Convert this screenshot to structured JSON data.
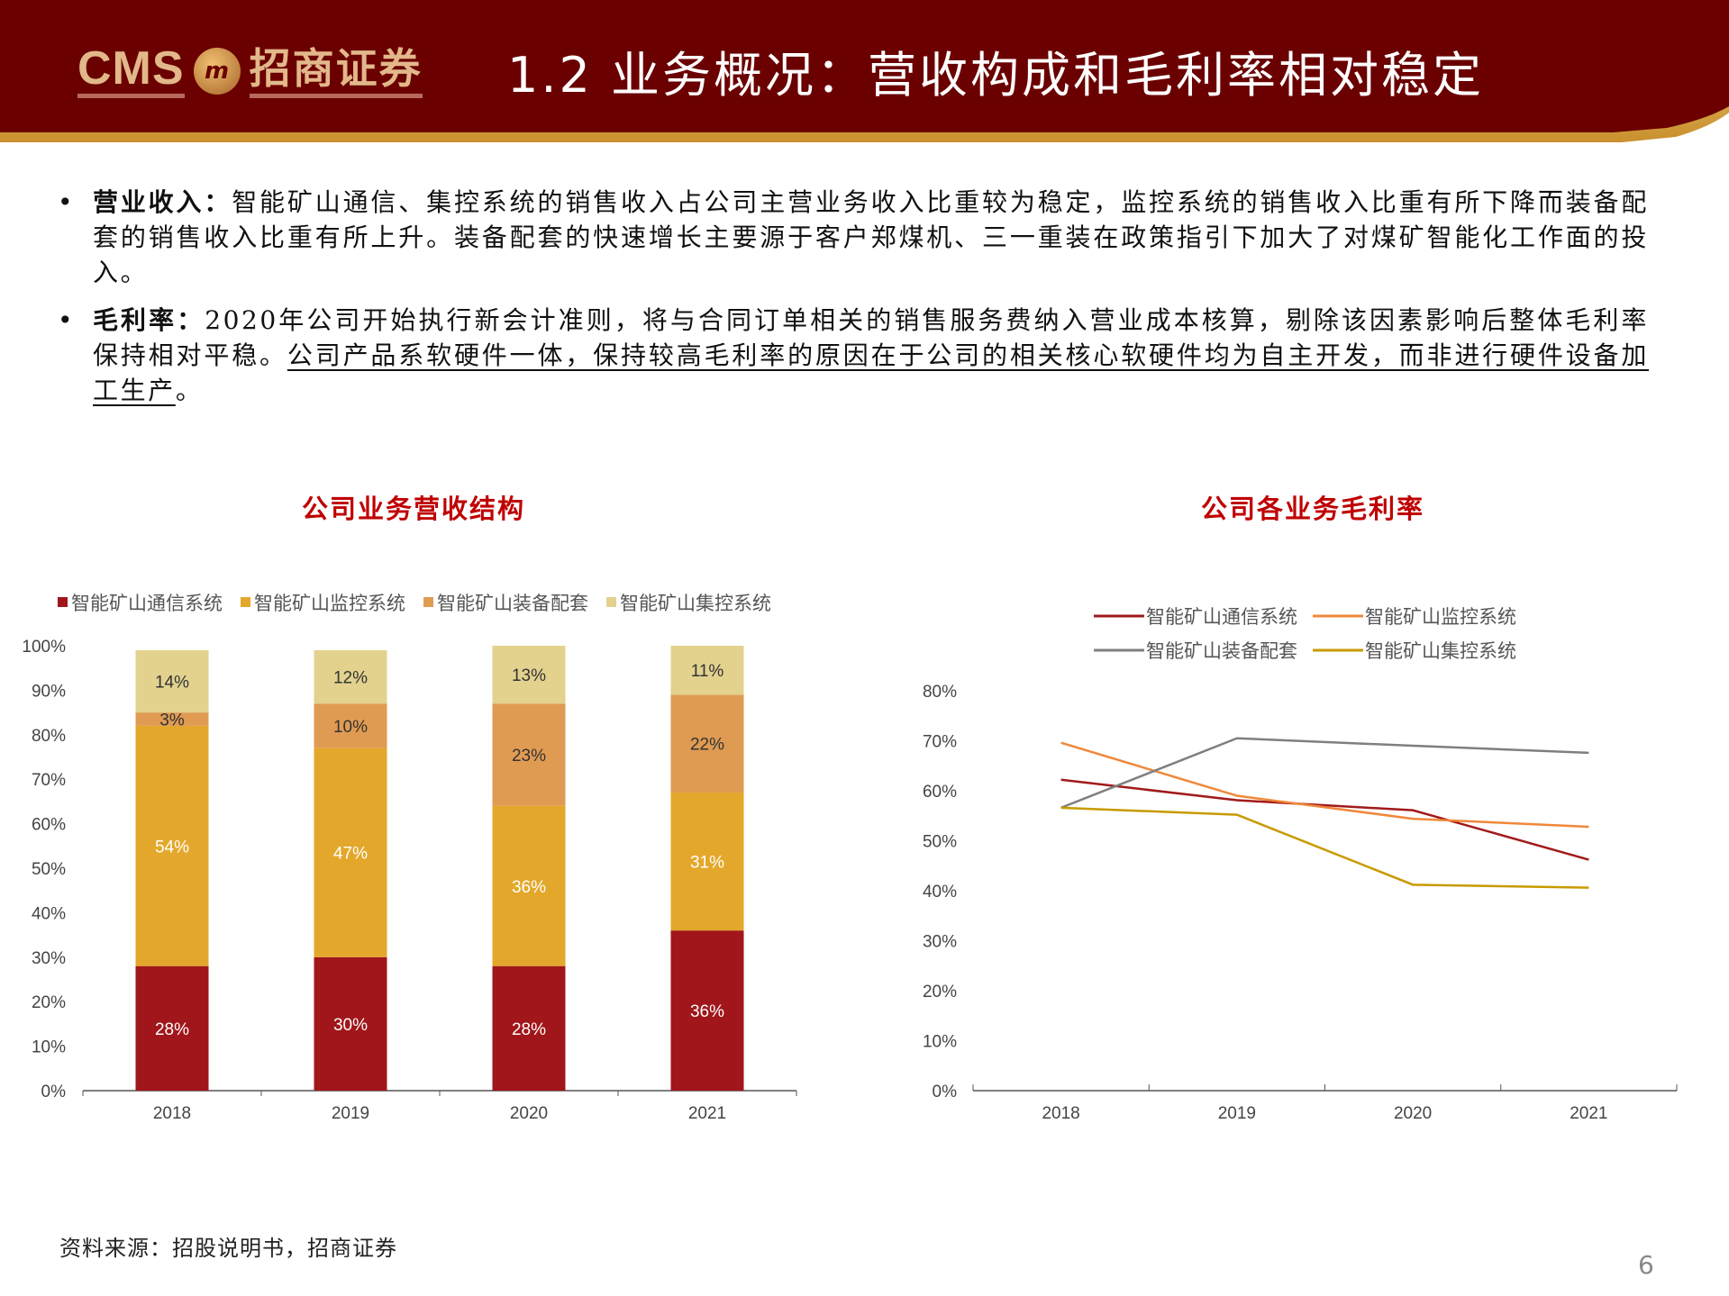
{
  "header": {
    "logo_text": "CMS 招商证券",
    "logo_cms": "CMS",
    "logo_cn": "招商证券",
    "title": "1.2 业务概况：营收构成和毛利率相对稳定"
  },
  "bullets": [
    {
      "label": "营业收入：",
      "text": "智能矿山通信、集控系统的销售收入占公司主营业务收入比重较为稳定，监控系统的销售收入比重有所下降而装备配套的销售收入比重有所上升。装备配套的快速增长主要源于客户郑煤机、三一重装在政策指引下加大了对煤矿智能化工作面的投入。",
      "underlined": "",
      "tail": ""
    },
    {
      "label": "毛利率：",
      "text": "2020年公司开始执行新会计准则，将与合同订单相关的销售服务费纳入营业成本核算，剔除该因素影响后整体毛利率保持相对平稳。",
      "underlined": "公司产品系软硬件一体，保持较高毛利率的原因在于公司的相关核心软硬件均为自主开发，而非进行硬件设备加工生产",
      "tail": "。"
    }
  ],
  "chart_data": [
    {
      "type": "bar",
      "stacked": true,
      "title": "公司业务营收结构",
      "categories": [
        "2018",
        "2019",
        "2020",
        "2021"
      ],
      "series": [
        {
          "name": "智能矿山通信系统",
          "values": [
            28,
            30,
            28,
            36
          ],
          "color": "#a0161a",
          "label_color": "#ffffff"
        },
        {
          "name": "智能矿山监控系统",
          "values": [
            54,
            47,
            36,
            31
          ],
          "color": "#e3a82b",
          "label_color": "#ffffff"
        },
        {
          "name": "智能矿山装备配套",
          "values": [
            3,
            10,
            23,
            22
          ],
          "color": "#e09b52",
          "label_color": "#333333"
        },
        {
          "name": "智能矿山集控系统",
          "values": [
            14,
            12,
            13,
            11
          ],
          "color": "#e2d28e",
          "label_color": "#333333"
        }
      ],
      "data_labels": [
        [
          "28%",
          "30%",
          "28%",
          "36%"
        ],
        [
          "54%",
          "47%",
          "36%",
          "31%"
        ],
        [
          "3%",
          "10%",
          "23%",
          "22%"
        ],
        [
          "14%",
          "12%",
          "13%",
          "11%"
        ]
      ],
      "yticks": [
        "0%",
        "10%",
        "20%",
        "30%",
        "40%",
        "50%",
        "60%",
        "70%",
        "80%",
        "90%",
        "100%"
      ],
      "ylim": [
        0,
        100
      ],
      "legend_position": "top-left",
      "grid": false
    },
    {
      "type": "line",
      "title": "公司各业务毛利率",
      "categories": [
        "2018",
        "2019",
        "2020",
        "2021"
      ],
      "series": [
        {
          "name": "智能矿山通信系统",
          "values": [
            62.2,
            58.1,
            56.1,
            46.2
          ],
          "color": "#a11a1a"
        },
        {
          "name": "智能矿山监控系统",
          "values": [
            69.6,
            59.0,
            54.4,
            52.8
          ],
          "color": "#f0883a"
        },
        {
          "name": "智能矿山装备配套",
          "values": [
            56.6,
            70.5,
            69.0,
            67.6
          ],
          "color": "#7f7f7f"
        },
        {
          "name": "智能矿山集控系统",
          "values": [
            56.6,
            55.2,
            41.2,
            40.6
          ],
          "color": "#c89a00"
        }
      ],
      "yticks": [
        "0%",
        "10%",
        "20%",
        "30%",
        "40%",
        "50%",
        "60%",
        "70%",
        "80%"
      ],
      "ylim": [
        0,
        80
      ],
      "legend_position": "top",
      "grid": false
    }
  ],
  "footer": {
    "source": "资料来源：招股说明书，招商证券",
    "page_number": "6"
  },
  "colors": {
    "header_bg": "#6b0000",
    "header_accent": "#d9a441",
    "title_red": "#c00000"
  }
}
